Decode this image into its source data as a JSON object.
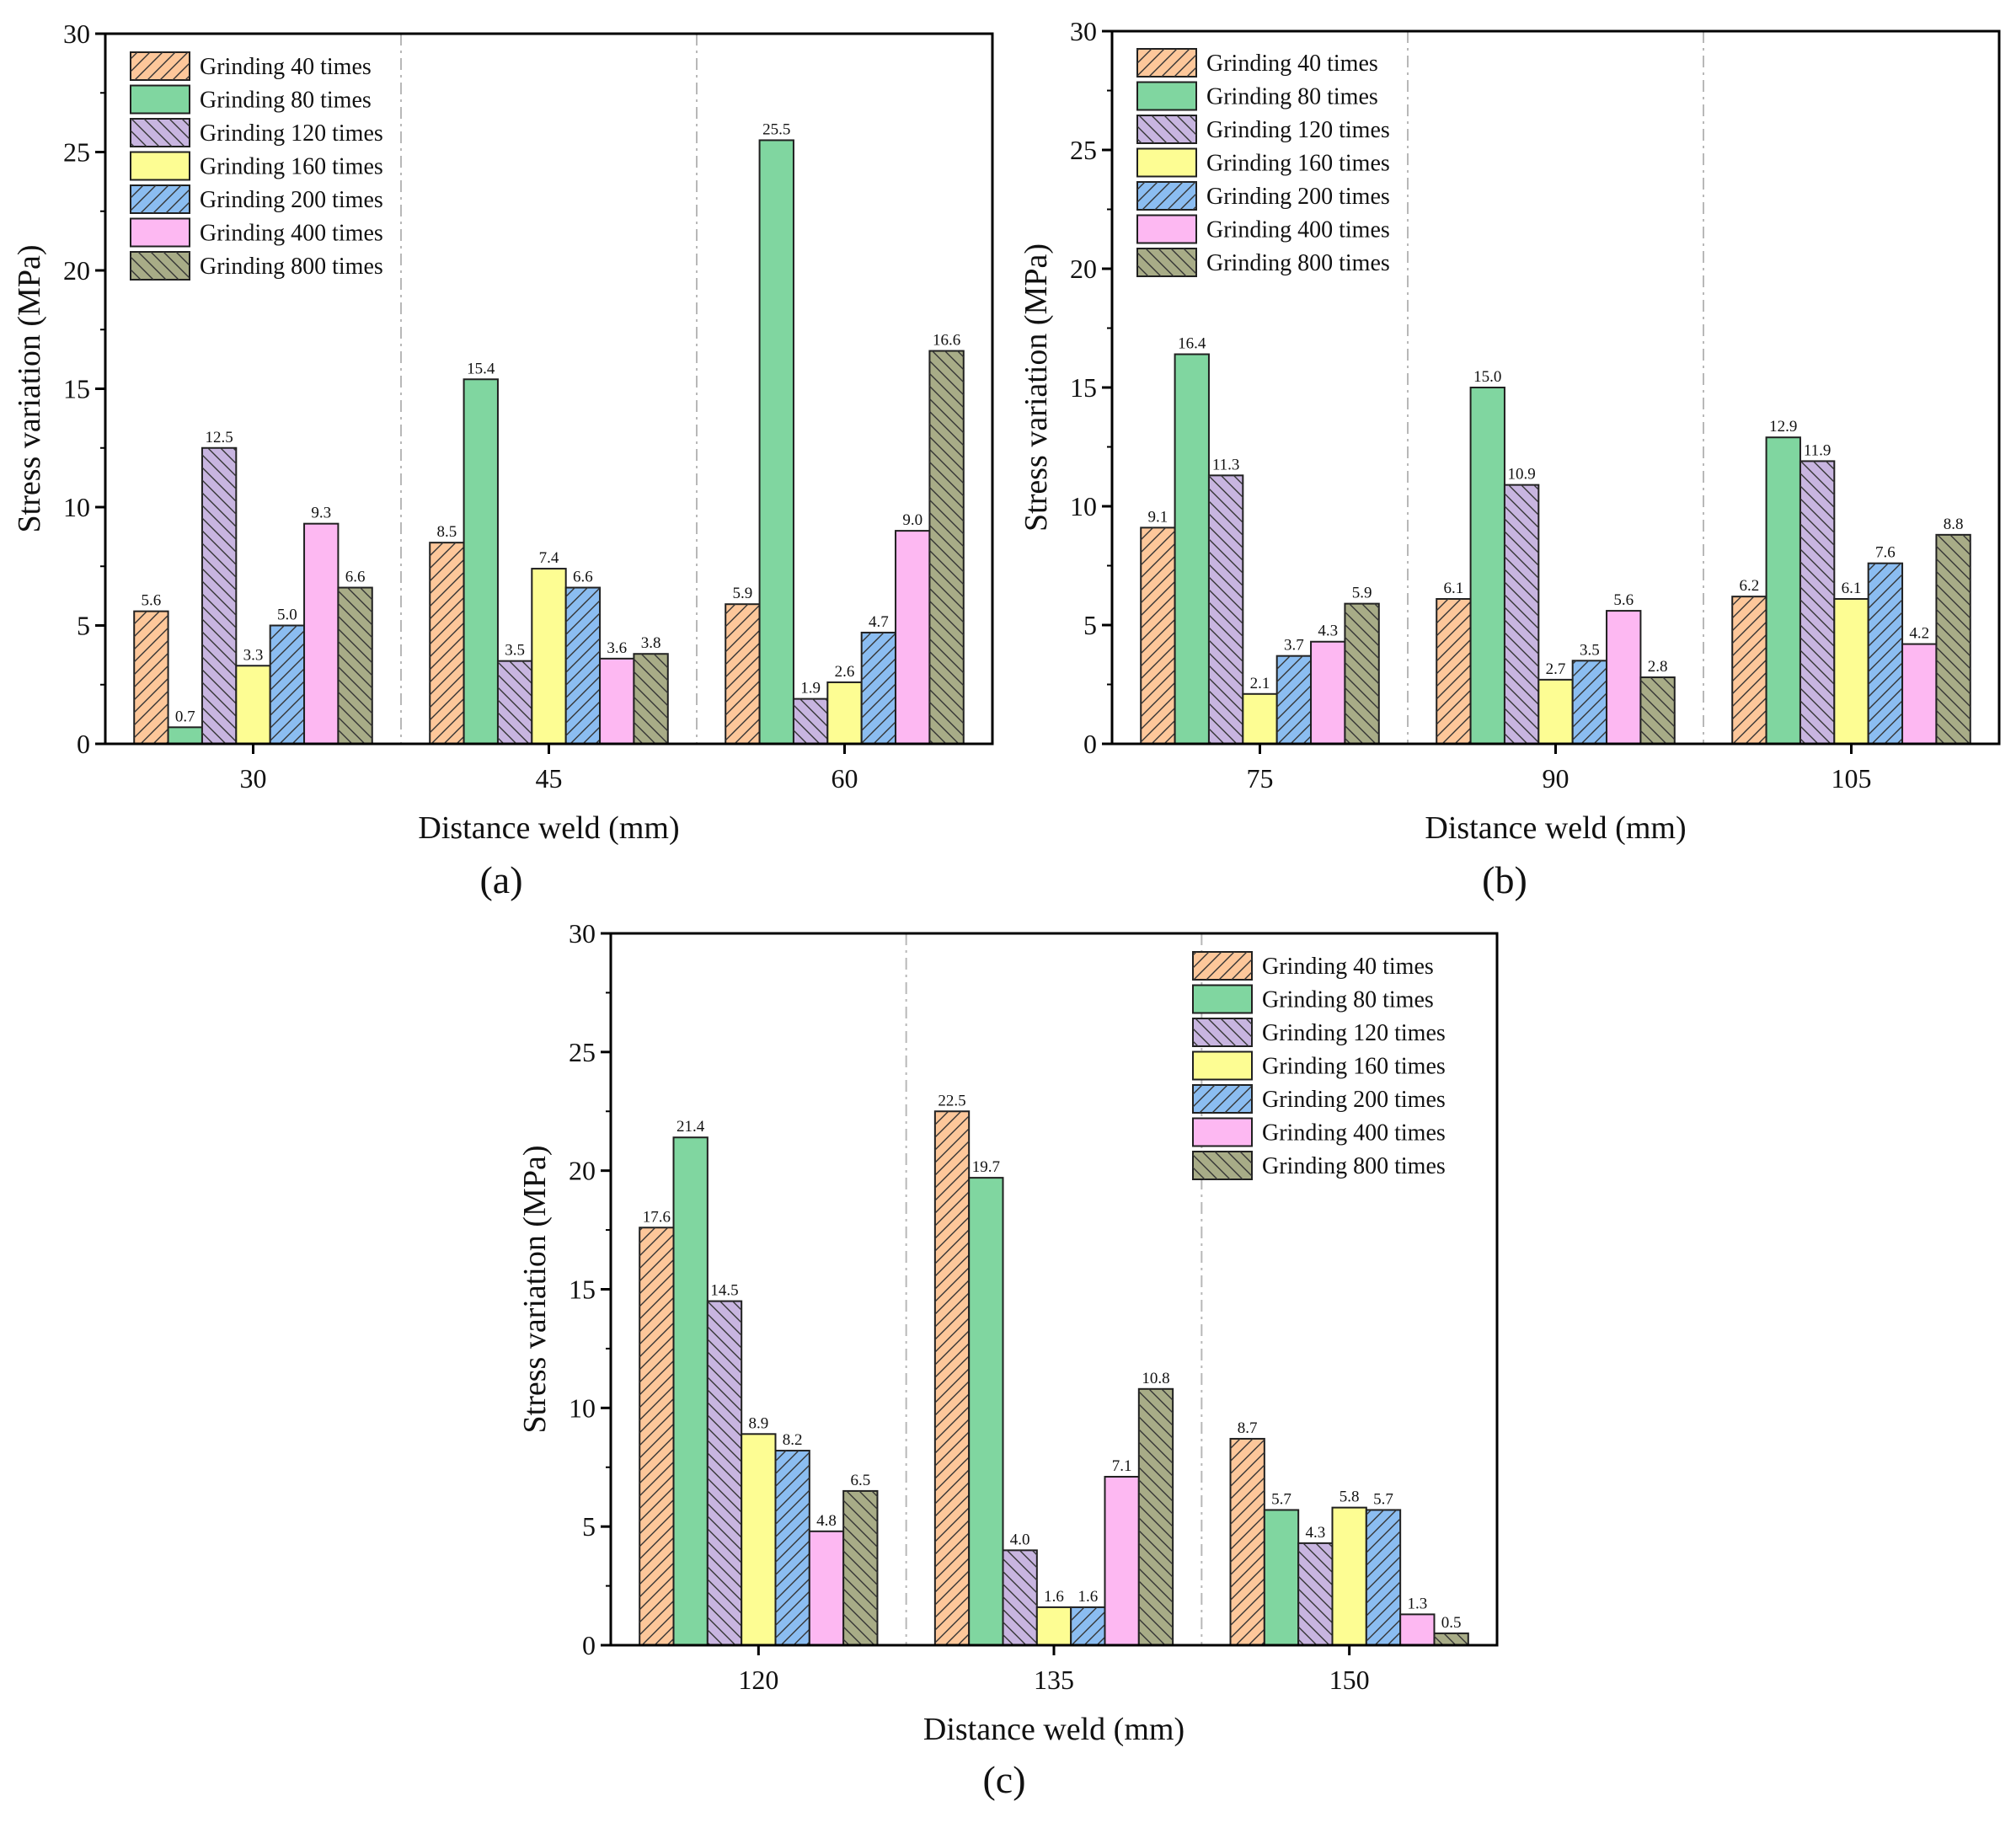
{
  "figure": {
    "series_colors": [
      "#fdc79a",
      "#80d6a0",
      "#c8b5e0",
      "#fdfd93",
      "#8bbdf1",
      "#fdb8f2",
      "#a8ac87"
    ],
    "series_hatch": [
      "right",
      "none",
      "left",
      "none",
      "right",
      "none",
      "left"
    ],
    "bar_stroke": "#202020"
  },
  "chart_data": [
    {
      "type": "bar",
      "panel_label": "(a)",
      "xlabel": "Distance weld (mm)",
      "ylabel": "Stress variation (MPa)",
      "ylim": [
        0,
        30
      ],
      "yticks": [
        "0",
        "5",
        "10",
        "15",
        "20",
        "25",
        "30"
      ],
      "grid": false,
      "group_separators": "dash-dot vertical lines",
      "legend_position": "top-left",
      "categories": [
        "30",
        "45",
        "60"
      ],
      "series": [
        {
          "name": "Grinding 40 times",
          "values": [
            5.6,
            8.5,
            5.9
          ],
          "labels": [
            "5.6",
            "8.5",
            "5.9"
          ]
        },
        {
          "name": "Grinding 80 times",
          "values": [
            0.7,
            15.4,
            25.5
          ],
          "labels": [
            "0.7",
            "15.4",
            "25.5"
          ]
        },
        {
          "name": "Grinding 120 times",
          "values": [
            12.5,
            3.5,
            1.9
          ],
          "labels": [
            "12.5",
            "3.5",
            "1.9"
          ]
        },
        {
          "name": "Grinding 160 times",
          "values": [
            3.3,
            7.4,
            2.6
          ],
          "labels": [
            "3.3",
            "7.4",
            "2.6"
          ]
        },
        {
          "name": "Grinding 200 times",
          "values": [
            5.0,
            6.6,
            4.7
          ],
          "labels": [
            "5.0",
            "6.6",
            "4.7"
          ]
        },
        {
          "name": "Grinding 400 times",
          "values": [
            9.3,
            3.6,
            9.0
          ],
          "labels": [
            "9.3",
            "3.6",
            "9.0"
          ]
        },
        {
          "name": "Grinding 800 times",
          "values": [
            6.6,
            3.8,
            16.6
          ],
          "labels": [
            "6.6",
            "3.8",
            "16.6"
          ]
        }
      ]
    },
    {
      "type": "bar",
      "panel_label": "(b)",
      "xlabel": "Distance weld (mm)",
      "ylabel": "Stress variation (MPa)",
      "ylim": [
        0,
        30
      ],
      "yticks": [
        "0",
        "5",
        "10",
        "15",
        "20",
        "25",
        "30"
      ],
      "grid": false,
      "group_separators": "dash-dot vertical lines",
      "legend_position": "top-left",
      "categories": [
        "75",
        "90",
        "105"
      ],
      "series": [
        {
          "name": "Grinding 40 times",
          "values": [
            9.1,
            6.1,
            6.2
          ],
          "labels": [
            "9.1",
            "6.1",
            "6.2"
          ]
        },
        {
          "name": "Grinding 80 times",
          "values": [
            16.4,
            15.0,
            12.9
          ],
          "labels": [
            "16.4",
            "15.0",
            "12.9"
          ]
        },
        {
          "name": "Grinding 120 times",
          "values": [
            11.3,
            10.9,
            11.9
          ],
          "labels": [
            "11.3",
            "10.9",
            "11.9"
          ]
        },
        {
          "name": "Grinding 160 times",
          "values": [
            2.1,
            2.7,
            6.1
          ],
          "labels": [
            "2.1",
            "2.7",
            "6.1"
          ]
        },
        {
          "name": "Grinding 200 times",
          "values": [
            3.7,
            3.5,
            7.6
          ],
          "labels": [
            "3.7",
            "3.5",
            "7.6"
          ]
        },
        {
          "name": "Grinding 400 times",
          "values": [
            4.3,
            5.6,
            4.2
          ],
          "labels": [
            "4.3",
            "5.6",
            "4.2"
          ]
        },
        {
          "name": "Grinding 800 times",
          "values": [
            5.9,
            2.8,
            8.8
          ],
          "labels": [
            "5.9",
            "2.8",
            "8.8"
          ]
        }
      ]
    },
    {
      "type": "bar",
      "panel_label": "(c)",
      "xlabel": "Distance weld (mm)",
      "ylabel": "Stress variation (MPa)",
      "ylim": [
        0,
        30
      ],
      "yticks": [
        "0",
        "5",
        "10",
        "15",
        "20",
        "25",
        "30"
      ],
      "grid": false,
      "group_separators": "dash-dot vertical lines",
      "legend_position": "top-right",
      "categories": [
        "120",
        "135",
        "150"
      ],
      "series": [
        {
          "name": "Grinding 40 times",
          "values": [
            17.6,
            22.5,
            8.7
          ],
          "labels": [
            "17.6",
            "22.5",
            "8.7"
          ]
        },
        {
          "name": "Grinding 80 times",
          "values": [
            21.4,
            19.7,
            5.7
          ],
          "labels": [
            "21.4",
            "19.7",
            "5.7"
          ]
        },
        {
          "name": "Grinding 120 times",
          "values": [
            14.5,
            4.0,
            4.3
          ],
          "labels": [
            "14.5",
            "4.0",
            "4.3"
          ]
        },
        {
          "name": "Grinding 160 times",
          "values": [
            8.9,
            1.6,
            5.8
          ],
          "labels": [
            "8.9",
            "1.6",
            "5.8"
          ]
        },
        {
          "name": "Grinding 200 times",
          "values": [
            8.2,
            1.6,
            5.7
          ],
          "labels": [
            "8.2",
            "1.6",
            "5.7"
          ]
        },
        {
          "name": "Grinding 400 times",
          "values": [
            4.8,
            7.1,
            1.3
          ],
          "labels": [
            "4.8",
            "7.1",
            "1.3"
          ]
        },
        {
          "name": "Grinding 800 times",
          "values": [
            6.5,
            10.8,
            0.5
          ],
          "labels": [
            "6.5",
            "10.8",
            "0.5"
          ]
        }
      ]
    }
  ]
}
